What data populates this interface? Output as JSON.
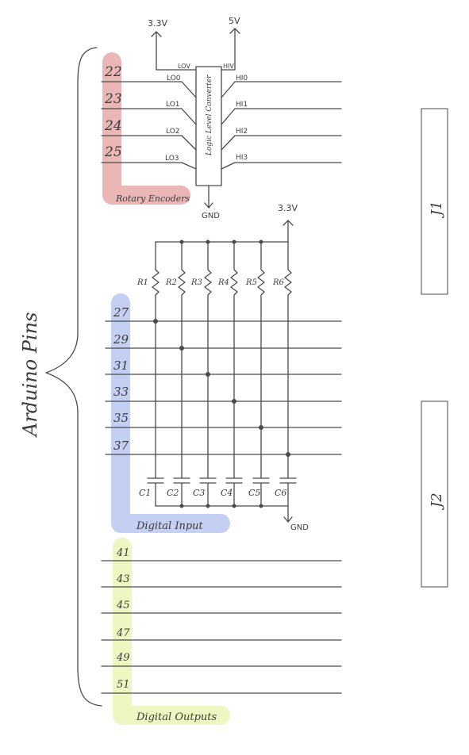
{
  "bracket_label": "Arduino Pins",
  "rotary_encoders": {
    "label": "Rotary Encoders",
    "color": "#e8a9a9",
    "text_color": "#a32a2a",
    "pins": [
      "22",
      "23",
      "24",
      "25"
    ]
  },
  "level_converter": {
    "label": "Logic Level Converter",
    "lv_label": "LOV",
    "hv_label": "HIV",
    "lo_pins": [
      "LO0",
      "LO1",
      "LO2",
      "LO3"
    ],
    "hi_pins": [
      "HI0",
      "HI1",
      "HI2",
      "HI3"
    ],
    "lv_supply": "3.3V",
    "hv_supply": "5V",
    "ground": "GND"
  },
  "digital_input": {
    "label": "Digital Input",
    "color": "#b9c7f1",
    "text_color": "#2f3f96",
    "pins": [
      "27",
      "29",
      "31",
      "33",
      "35",
      "37"
    ],
    "resistors": [
      "R1",
      "R2",
      "R3",
      "R4",
      "R5",
      "R6"
    ],
    "capacitors": [
      "C1",
      "C2",
      "C3",
      "C4",
      "C5",
      "C6"
    ],
    "supply": "3.3V",
    "ground": "GND"
  },
  "digital_outputs": {
    "label": "Digital Outputs",
    "color": "#e9f6b7",
    "text_color": "#5fa83a",
    "pins": [
      "41",
      "43",
      "45",
      "47",
      "49",
      "51"
    ]
  },
  "connectors": [
    "J1",
    "J2"
  ]
}
